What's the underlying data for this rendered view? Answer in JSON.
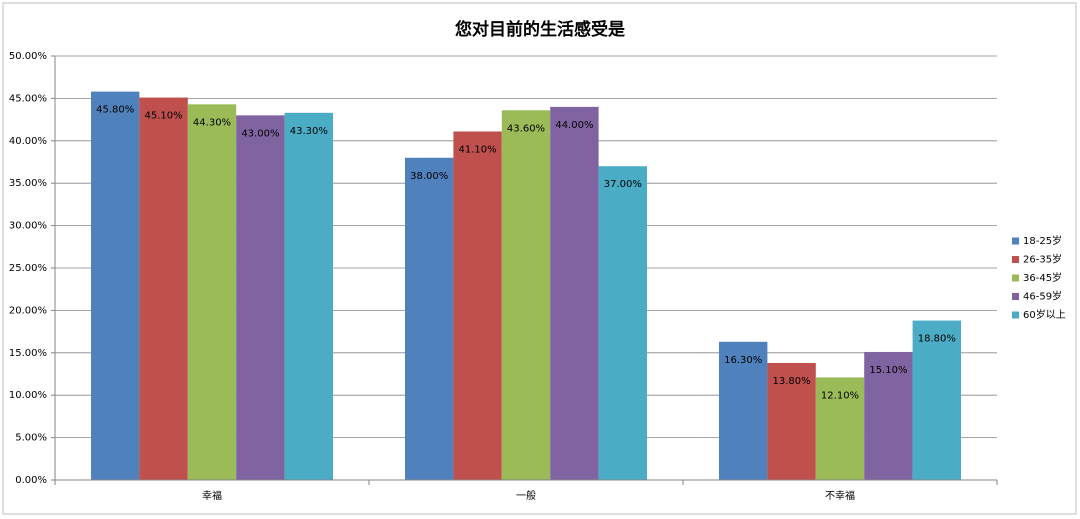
{
  "chart_data": {
    "type": "bar",
    "title": "您对目前的生活感受是",
    "categories": [
      "幸福",
      "一般",
      "不幸福"
    ],
    "series": [
      {
        "name": "18-25岁",
        "color": "#4f81bd",
        "values": [
          45.8,
          38.0,
          16.3
        ],
        "value_labels": [
          "45.80%",
          "38.00%",
          "16.30%"
        ]
      },
      {
        "name": "26-35岁",
        "color": "#c0504d",
        "values": [
          45.1,
          41.1,
          13.8
        ],
        "value_labels": [
          "45.10%",
          "41.10%",
          "13.80%"
        ]
      },
      {
        "name": "36-45岁",
        "color": "#9bbb59",
        "values": [
          44.3,
          43.6,
          12.1
        ],
        "value_labels": [
          "44.30%",
          "43.60%",
          "12.10%"
        ]
      },
      {
        "name": "46-59岁",
        "color": "#8064a2",
        "values": [
          43.0,
          44.0,
          15.1
        ],
        "value_labels": [
          "43.00%",
          "44.00%",
          "15.10%"
        ]
      },
      {
        "name": "60岁以上",
        "color": "#4bacc6",
        "values": [
          43.3,
          37.0,
          18.8
        ],
        "value_labels": [
          "43.30%",
          "37.00%",
          "18.80%"
        ]
      }
    ],
    "ylim": [
      0,
      50
    ],
    "yticks": [
      {
        "value": 0,
        "label": "0.00%"
      },
      {
        "value": 5,
        "label": "5.00%"
      },
      {
        "value": 10,
        "label": "10.00%"
      },
      {
        "value": 15,
        "label": "15.00%"
      },
      {
        "value": 20,
        "label": "20.00%"
      },
      {
        "value": 25,
        "label": "25.00%"
      },
      {
        "value": 30,
        "label": "30.00%"
      },
      {
        "value": 35,
        "label": "35.00%"
      },
      {
        "value": 40,
        "label": "40.00%"
      },
      {
        "value": 45,
        "label": "45.00%"
      },
      {
        "value": 50,
        "label": "50.00%"
      }
    ],
    "grid": true,
    "legend": "right"
  }
}
